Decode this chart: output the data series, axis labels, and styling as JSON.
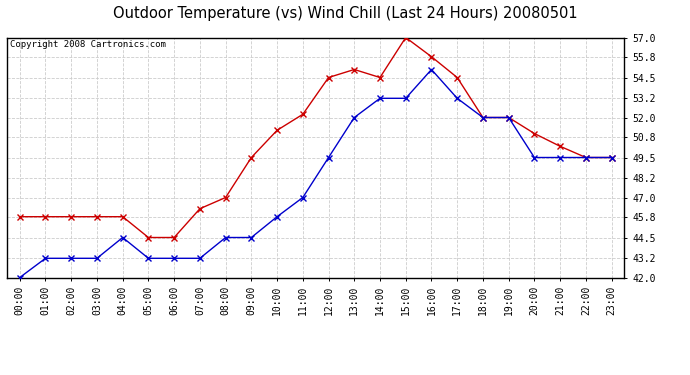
{
  "title": "Outdoor Temperature (vs) Wind Chill (Last 24 Hours) 20080501",
  "copyright": "Copyright 2008 Cartronics.com",
  "hours": [
    "00:00",
    "01:00",
    "02:00",
    "03:00",
    "04:00",
    "05:00",
    "06:00",
    "07:00",
    "08:00",
    "09:00",
    "10:00",
    "11:00",
    "12:00",
    "13:00",
    "14:00",
    "15:00",
    "16:00",
    "17:00",
    "18:00",
    "19:00",
    "20:00",
    "21:00",
    "22:00",
    "23:00"
  ],
  "temp": [
    45.8,
    45.8,
    45.8,
    45.8,
    45.8,
    44.5,
    44.5,
    46.3,
    47.0,
    49.5,
    51.2,
    52.2,
    54.5,
    55.0,
    54.5,
    57.0,
    55.8,
    54.5,
    52.0,
    52.0,
    51.0,
    50.2,
    49.5,
    49.5
  ],
  "windchill": [
    42.0,
    43.2,
    43.2,
    43.2,
    44.5,
    43.2,
    43.2,
    43.2,
    44.5,
    44.5,
    45.8,
    47.0,
    49.5,
    52.0,
    53.2,
    53.2,
    55.0,
    53.2,
    52.0,
    52.0,
    49.5,
    49.5,
    49.5,
    49.5
  ],
  "temp_color": "#cc0000",
  "windchill_color": "#0000cc",
  "ylim_min": 42.0,
  "ylim_max": 57.0,
  "yticks": [
    42.0,
    43.2,
    44.5,
    45.8,
    47.0,
    48.2,
    49.5,
    50.8,
    52.0,
    53.2,
    54.5,
    55.8,
    57.0
  ],
  "background_color": "#ffffff",
  "grid_color": "#cccccc",
  "title_fontsize": 10.5,
  "copyright_fontsize": 6.5,
  "tick_fontsize": 7,
  "marker_size": 4,
  "line_width": 1.0
}
